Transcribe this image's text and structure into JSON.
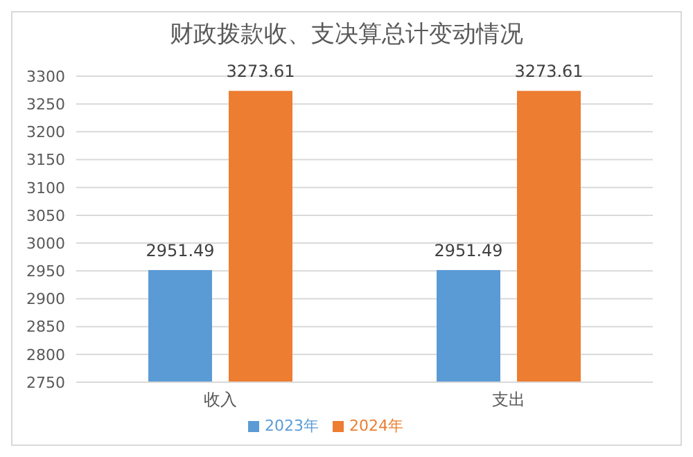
{
  "chart_data": {
    "type": "bar",
    "title": "财政拨款收、支决算总计变动情况",
    "categories": [
      "收入",
      "支出"
    ],
    "series": [
      {
        "name": "2023年",
        "color": "#5b9bd5",
        "values": [
          2951.49,
          2951.49
        ]
      },
      {
        "name": "2024年",
        "color": "#ed7d31",
        "values": [
          3273.61,
          3273.61
        ]
      }
    ],
    "ylim": [
      2750,
      3300
    ],
    "yticks": [
      2750,
      2800,
      2850,
      2900,
      2950,
      3000,
      3050,
      3100,
      3150,
      3200,
      3250,
      3300
    ],
    "grid": "y",
    "legend": "bottom",
    "data_labels": true
  }
}
